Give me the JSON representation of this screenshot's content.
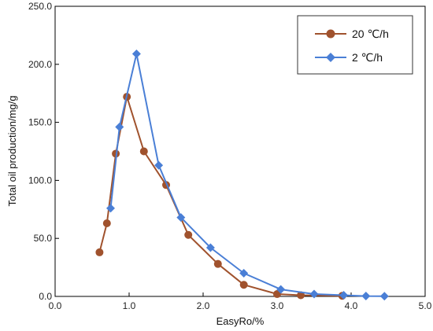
{
  "chart_data": {
    "type": "line",
    "title": "",
    "xlabel": "EasyRo/%",
    "ylabel": "Total oil production/mg/g",
    "xlim": [
      0.0,
      5.0
    ],
    "ylim": [
      0.0,
      250.0
    ],
    "x_ticks": [
      "0.0",
      "1.0",
      "2.0",
      "3.0",
      "4.0",
      "5.0"
    ],
    "y_ticks": [
      "0.0",
      "50.0",
      "100.0",
      "150.0",
      "200.0",
      "250.0"
    ],
    "grid": false,
    "legend_position": "top-right",
    "series": [
      {
        "name": "20 ℃/h",
        "color": "#a0522d",
        "marker": "circle",
        "x": [
          0.6,
          0.7,
          0.82,
          0.97,
          1.2,
          1.5,
          1.8,
          2.2,
          2.55,
          3.0,
          3.32,
          3.88
        ],
        "y": [
          38,
          63,
          123,
          172,
          125,
          96,
          53,
          28,
          10,
          2,
          1,
          0.5
        ]
      },
      {
        "name": "2 ℃/h",
        "color": "#4a7fd6",
        "marker": "diamond",
        "x": [
          0.75,
          0.87,
          1.1,
          1.4,
          1.7,
          2.1,
          2.55,
          3.05,
          3.5,
          3.9,
          4.2,
          4.45
        ],
        "y": [
          76,
          146,
          209,
          113,
          68,
          42,
          20,
          6,
          2,
          1,
          0.3,
          0.2
        ]
      }
    ]
  }
}
